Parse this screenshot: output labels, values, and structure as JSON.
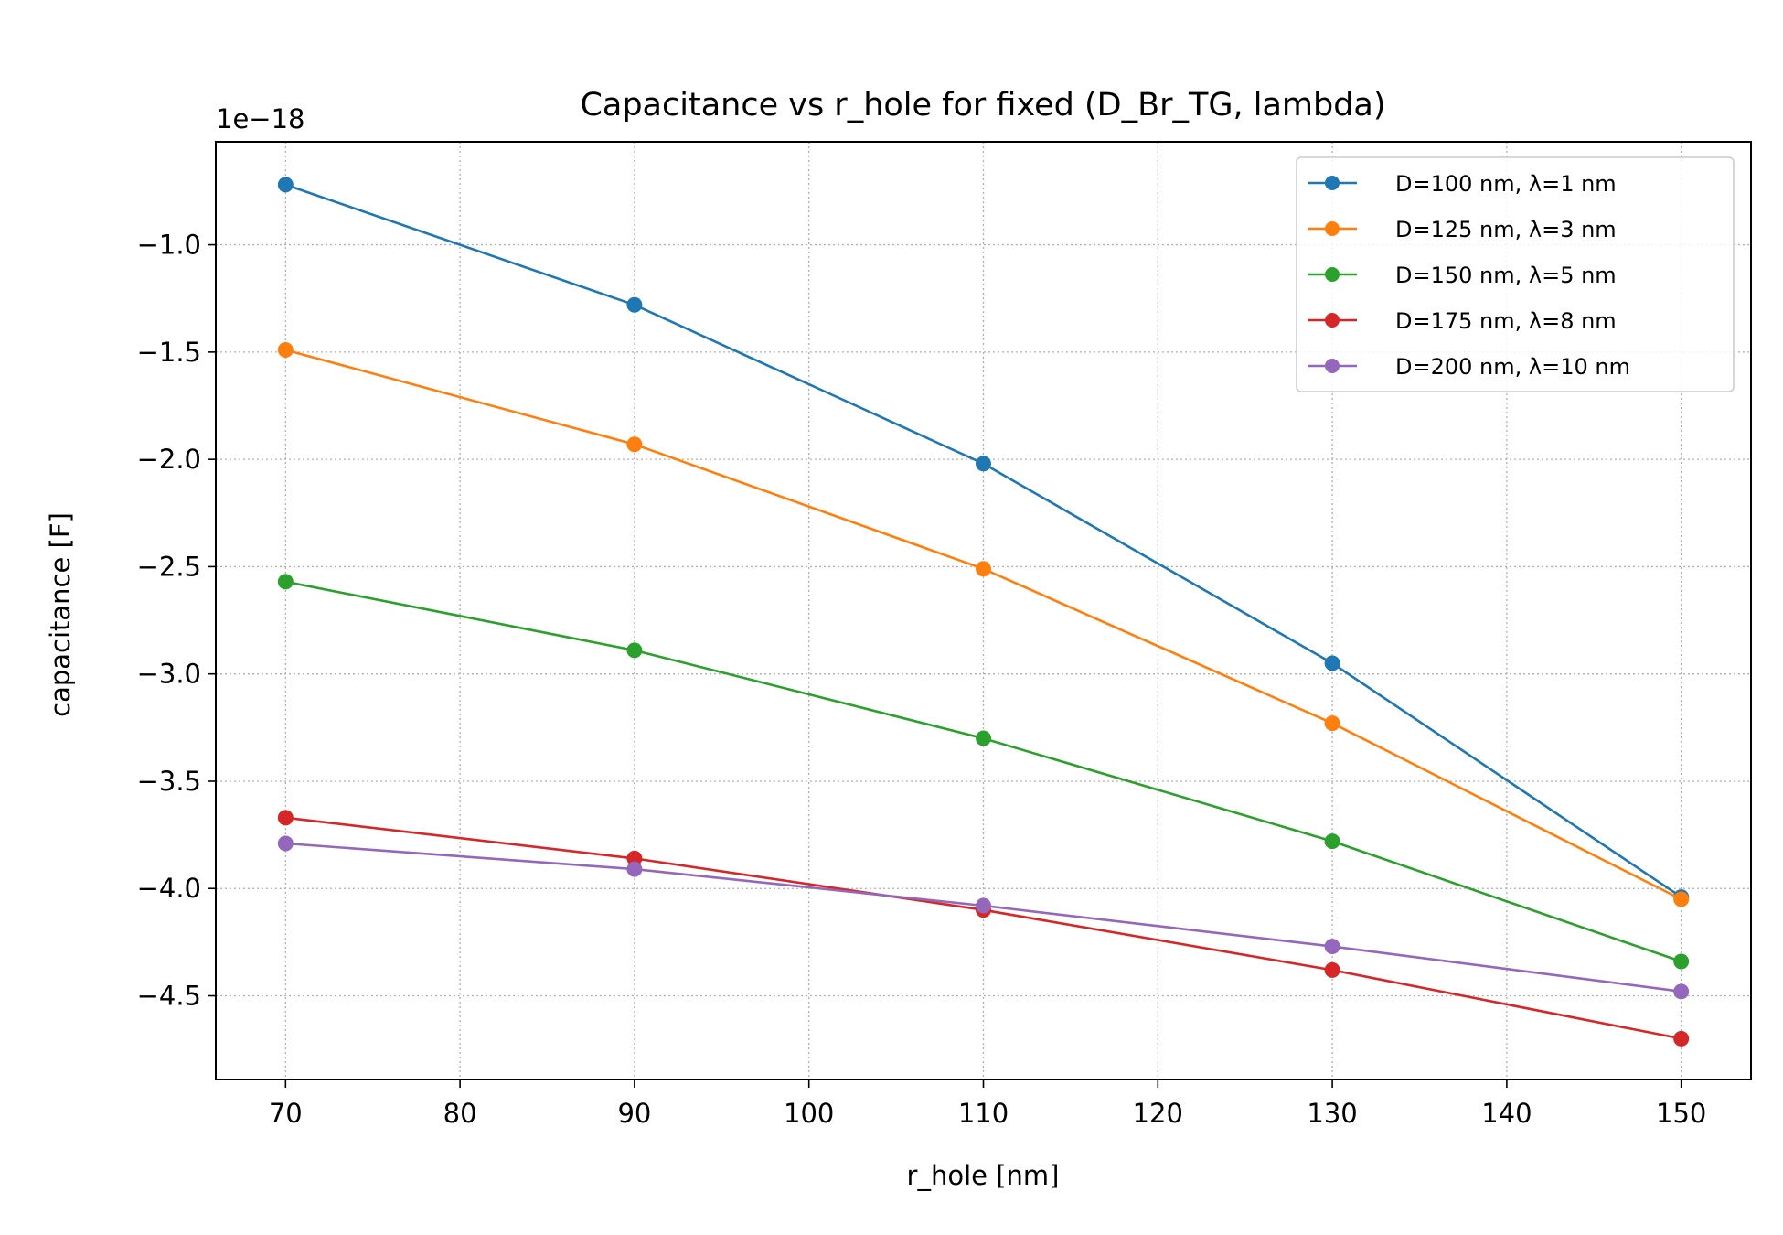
{
  "chart_data": {
    "type": "line",
    "title": "Capacitance vs r_hole for fixed (D_Br_TG, lambda)",
    "xlabel": "r_hole [nm]",
    "ylabel": "capacitance [F]",
    "y_offset_label": "1e−18",
    "xlim": [
      66,
      154
    ],
    "ylim": [
      -4.89,
      -0.52
    ],
    "xticks": [
      70,
      80,
      90,
      100,
      110,
      120,
      130,
      140,
      150
    ],
    "xtick_labels": [
      "70",
      "80",
      "90",
      "100",
      "110",
      "120",
      "130",
      "140",
      "150"
    ],
    "yticks": [
      -1.0,
      -1.5,
      -2.0,
      -2.5,
      -3.0,
      -3.5,
      -4.0,
      -4.5
    ],
    "ytick_labels": [
      "−1.0",
      "−1.5",
      "−2.0",
      "−2.5",
      "−3.0",
      "−3.5",
      "−4.0",
      "−4.5"
    ],
    "grid": true,
    "legend_position": "top-right",
    "x": [
      70,
      90,
      110,
      130,
      150
    ],
    "series": [
      {
        "name": "D=100 nm, λ=1 nm",
        "color": "#1f77b4",
        "values": [
          -0.72,
          -1.28,
          -2.02,
          -2.95,
          -4.04
        ]
      },
      {
        "name": "D=125 nm, λ=3 nm",
        "color": "#ff7f0e",
        "values": [
          -1.49,
          -1.93,
          -2.51,
          -3.23,
          -4.05
        ]
      },
      {
        "name": "D=150 nm, λ=5 nm",
        "color": "#2ca02c",
        "values": [
          -2.57,
          -2.89,
          -3.3,
          -3.78,
          -4.34
        ]
      },
      {
        "name": "D=175 nm, λ=8 nm",
        "color": "#d62728",
        "values": [
          -3.67,
          -3.86,
          -4.1,
          -4.38,
          -4.7
        ]
      },
      {
        "name": "D=200 nm, λ=10 nm",
        "color": "#9467bd",
        "values": [
          -3.79,
          -3.91,
          -4.08,
          -4.27,
          -4.48
        ]
      }
    ]
  }
}
